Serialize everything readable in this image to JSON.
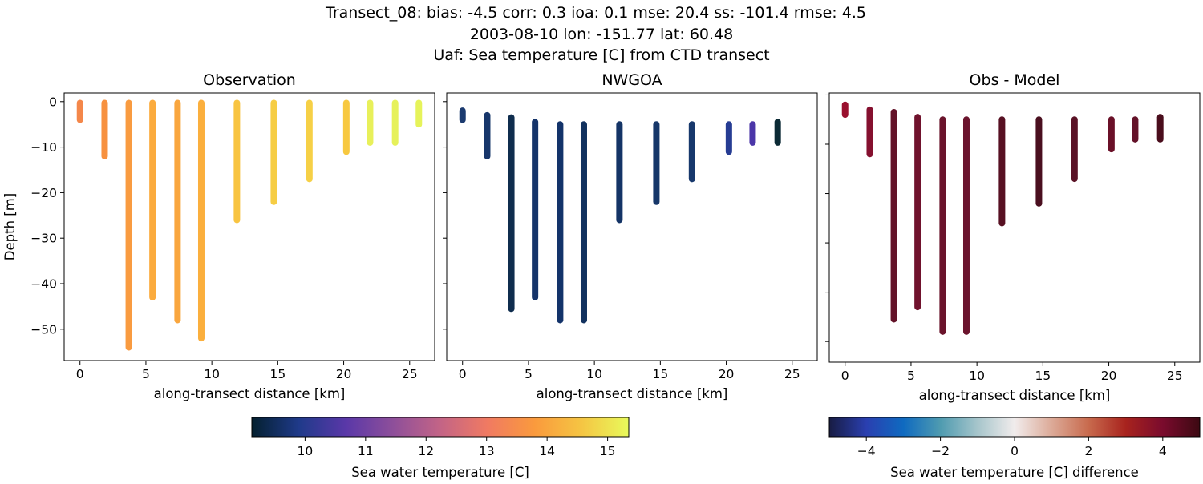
{
  "title_lines": [
    "Transect_08: bias: -4.5  corr: 0.3  ioa: 0.1  mse: 20.4  ss: -101.4  rmse: 4.5",
    "2003-08-10 lon: -151.77 lat: 60.48",
    "Uaf: Sea temperature [C] from CTD transect"
  ],
  "chart_data": [
    {
      "type": "scatter",
      "title": "Observation",
      "xlabel": "along-transect distance [km]",
      "ylabel": "Depth [m]",
      "xlim": [
        -1.2,
        26.9
      ],
      "ylim": [
        -56.9,
        1.9
      ],
      "xticks": [
        0,
        5,
        10,
        15,
        20,
        25
      ],
      "yticks": [
        0,
        -10,
        -20,
        -30,
        -40,
        -50
      ],
      "ytick_labels": true,
      "profiles": [
        {
          "x": 0.0,
          "top": -0.3,
          "bottom": -4,
          "color": "#f4874a"
        },
        {
          "x": 1.87,
          "top": -0.3,
          "bottom": -12,
          "color": "#f7913f"
        },
        {
          "x": 3.7,
          "top": -0.3,
          "bottom": -54,
          "color": "#f99b40"
        },
        {
          "x": 5.5,
          "top": -0.3,
          "bottom": -43,
          "color": "#fbab3d"
        },
        {
          "x": 7.4,
          "top": -0.3,
          "bottom": -48,
          "color": "#f9a63e"
        },
        {
          "x": 9.2,
          "top": -0.3,
          "bottom": -52,
          "color": "#fbaf3d"
        },
        {
          "x": 11.9,
          "top": -0.3,
          "bottom": -26,
          "color": "#f8c441"
        },
        {
          "x": 14.7,
          "top": -0.3,
          "bottom": -22,
          "color": "#f6cd44"
        },
        {
          "x": 17.4,
          "top": -0.3,
          "bottom": -17,
          "color": "#f6d046"
        },
        {
          "x": 20.2,
          "top": -0.3,
          "bottom": -11,
          "color": "#f7c840"
        },
        {
          "x": 22.0,
          "top": -0.3,
          "bottom": -9,
          "color": "#e8f05a"
        },
        {
          "x": 23.9,
          "top": -0.3,
          "bottom": -9,
          "color": "#e6f15a"
        },
        {
          "x": 25.7,
          "top": -0.3,
          "bottom": -5,
          "color": "#e6f35a"
        }
      ]
    },
    {
      "type": "scatter",
      "title": "NWGOA",
      "xlabel": "along-transect distance [km]",
      "xlim": [
        -1.2,
        26.9
      ],
      "ylim": [
        -56.9,
        1.9
      ],
      "xticks": [
        0,
        5,
        10,
        15,
        20,
        25
      ],
      "yticks": [
        0,
        -10,
        -20,
        -30,
        -40,
        -50
      ],
      "ytick_labels": false,
      "profiles": [
        {
          "x": 0.0,
          "top": -2,
          "bottom": -4,
          "color": "#1b3a6f"
        },
        {
          "x": 1.87,
          "top": -3,
          "bottom": -12,
          "color": "#17366b"
        },
        {
          "x": 3.7,
          "top": -3.5,
          "bottom": -45.5,
          "color": "#0f2d4e"
        },
        {
          "x": 5.5,
          "top": -4.5,
          "bottom": -43,
          "color": "#15346a"
        },
        {
          "x": 7.4,
          "top": -5,
          "bottom": -48,
          "color": "#13336a"
        },
        {
          "x": 9.2,
          "top": -5,
          "bottom": -48,
          "color": "#12325f"
        },
        {
          "x": 11.9,
          "top": -5,
          "bottom": -26,
          "color": "#143466"
        },
        {
          "x": 14.7,
          "top": -5,
          "bottom": -22,
          "color": "#163769"
        },
        {
          "x": 17.4,
          "top": -5,
          "bottom": -17,
          "color": "#17386c"
        },
        {
          "x": 20.2,
          "top": -5,
          "bottom": -11,
          "color": "#263c93"
        },
        {
          "x": 22.0,
          "top": -5,
          "bottom": -9,
          "color": "#4b36a8"
        },
        {
          "x": 23.9,
          "top": -4.5,
          "bottom": -9,
          "color": "#0b2a35"
        }
      ]
    },
    {
      "type": "scatter",
      "title": "Obs - Model",
      "xlabel": "along-transect distance [km]",
      "xlim": [
        -1.2,
        26.9
      ],
      "ylim": [
        -54.2,
        0.4
      ],
      "xticks": [
        0,
        5,
        10,
        15,
        20,
        25
      ],
      "yticks": [
        0,
        -10,
        -20,
        -30,
        -40,
        -50
      ],
      "ytick_labels": false,
      "profiles": [
        {
          "x": 0.0,
          "top": -2,
          "bottom": -4,
          "color": "#9a102e"
        },
        {
          "x": 1.87,
          "top": -3,
          "bottom": -12,
          "color": "#85102f"
        },
        {
          "x": 3.7,
          "top": -3.5,
          "bottom": -45.5,
          "color": "#631228"
        },
        {
          "x": 5.5,
          "top": -4.5,
          "bottom": -43,
          "color": "#70122d"
        },
        {
          "x": 7.4,
          "top": -5,
          "bottom": -48,
          "color": "#6a132b"
        },
        {
          "x": 9.2,
          "top": -5,
          "bottom": -48,
          "color": "#6b142d"
        },
        {
          "x": 11.9,
          "top": -5,
          "bottom": -26,
          "color": "#571022"
        },
        {
          "x": 14.7,
          "top": -5,
          "bottom": -22,
          "color": "#4a0f1f"
        },
        {
          "x": 17.4,
          "top": -5,
          "bottom": -17,
          "color": "#5a1226"
        },
        {
          "x": 20.2,
          "top": -5,
          "bottom": -11,
          "color": "#6a1028"
        },
        {
          "x": 22.0,
          "top": -5,
          "bottom": -9,
          "color": "#641229"
        },
        {
          "x": 23.9,
          "top": -4.5,
          "bottom": -9,
          "color": "#4a0d1c"
        }
      ]
    }
  ],
  "colorbars": [
    {
      "label": "Sea water temperature [C]",
      "range": [
        9.12,
        15.35
      ],
      "ticks": [
        10,
        11,
        12,
        13,
        14,
        15
      ],
      "colors": [
        "#04202f",
        "#1f3a8a",
        "#5a38a8",
        "#8e4f9a",
        "#c36486",
        "#f07a62",
        "#fa9a3d",
        "#f5c543",
        "#e8fa5b"
      ]
    },
    {
      "label": "Sea water temperature [C] difference",
      "range": [
        -5,
        5
      ],
      "ticks": [
        -4,
        -2,
        0,
        2,
        4
      ],
      "tick_labels": [
        "−4",
        "−2",
        "0",
        "2",
        "4"
      ],
      "colors": [
        "#181c43",
        "#2a3fb0",
        "#0f6ac0",
        "#4f9bb0",
        "#a6c5cb",
        "#f1ecec",
        "#dcaa98",
        "#c86a4d",
        "#a8231e",
        "#7a0b2d",
        "#3c0912"
      ]
    }
  ]
}
